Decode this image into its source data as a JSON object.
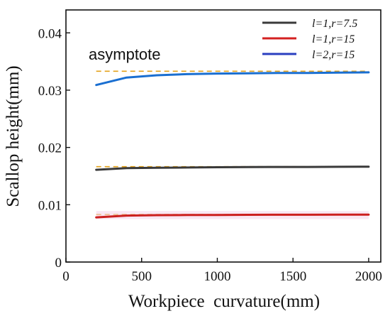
{
  "chart_data": {
    "type": "line",
    "title": "",
    "xlabel": "Workpiece  curvature(mm)",
    "ylabel": "Scallop height(mm)",
    "xlim": [
      0,
      2080
    ],
    "ylim": [
      0,
      0.044
    ],
    "xticks": [
      0,
      500,
      1000,
      1500,
      2000
    ],
    "xtick_labels": [
      "0",
      "500",
      "1000",
      "1500",
      "2000"
    ],
    "yticks": [
      0,
      0.01,
      0.02,
      0.03,
      0.04
    ],
    "ytick_labels": [
      "0",
      "0.01",
      "0.02",
      "0.03",
      "0.04"
    ],
    "grid": false,
    "legend_position": "top-right",
    "x": [
      200,
      400,
      600,
      800,
      1000,
      1200,
      1400,
      1600,
      1800,
      2000
    ],
    "series": [
      {
        "name": "l=1,r=7.5",
        "color": "#3a3a3a",
        "values": [
          0.0161,
          0.0164,
          0.01645,
          0.0165,
          0.01655,
          0.01658,
          0.0166,
          0.0166,
          0.01662,
          0.01664
        ]
      },
      {
        "name": "l=1,r=15",
        "color": "#cc1f1f",
        "values": [
          0.0078,
          0.0081,
          0.00818,
          0.0082,
          0.00822,
          0.00824,
          0.00825,
          0.00826,
          0.00827,
          0.00828
        ]
      },
      {
        "name": "l=2,r=15",
        "color": "#1a6fd1",
        "values": [
          0.0309,
          0.0322,
          0.0326,
          0.0328,
          0.0329,
          0.03295,
          0.033,
          0.033,
          0.03305,
          0.0331
        ]
      }
    ],
    "legend_colors": [
      "#3a3a3a",
      "#d42020",
      "#2a3fc0"
    ],
    "asymptotes": [
      {
        "y": 0.0333,
        "color": "#e3a21a"
      },
      {
        "y": 0.01665,
        "color": "#e3a21a"
      },
      {
        "y": 0.0083,
        "color": "#e3a21a"
      }
    ],
    "annotations": [
      {
        "text": "asymptote",
        "x": 150,
        "y": 0.0353
      }
    ]
  }
}
